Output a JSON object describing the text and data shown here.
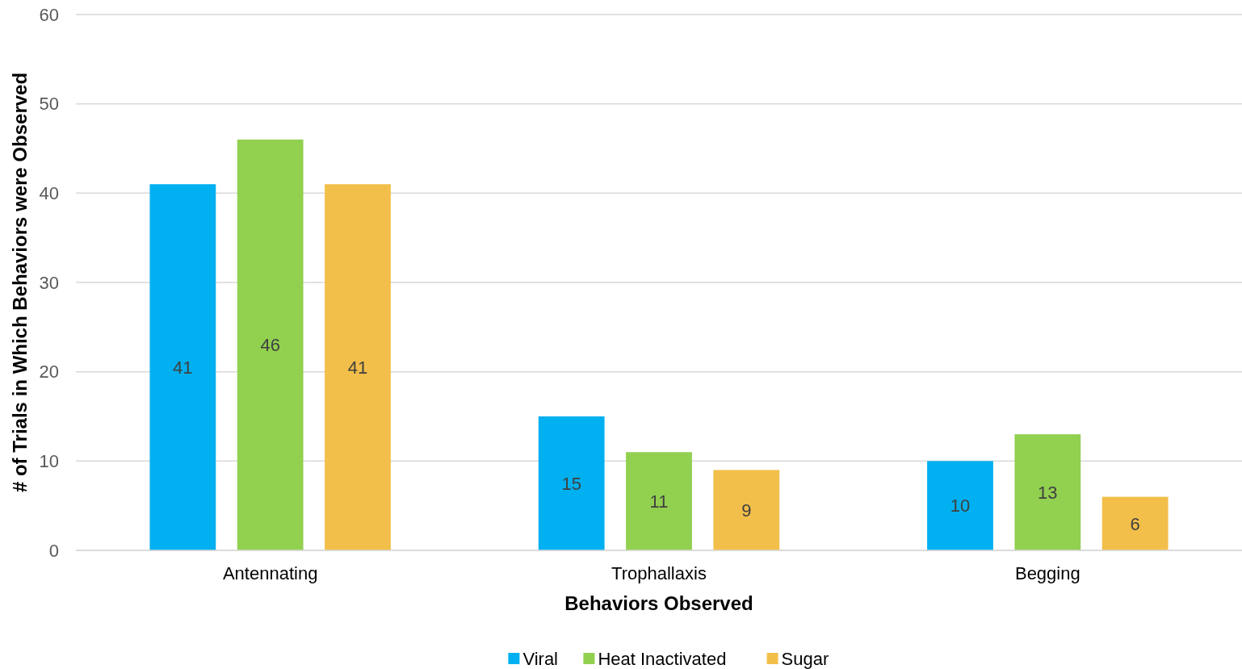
{
  "chart_data": {
    "type": "bar",
    "xlabel": "Behaviors Observed",
    "ylabel": "# of Trials in Which Behaviors were Observed",
    "categories": [
      "Antennating",
      "Trophallaxis",
      "Begging"
    ],
    "series": [
      {
        "name": "Viral",
        "color": "#00b0f0",
        "values": [
          41,
          15,
          10
        ]
      },
      {
        "name": "Heat Inactivated",
        "color": "#92d050",
        "values": [
          46,
          11,
          13
        ]
      },
      {
        "name": "Sugar",
        "color": "#f2bf4a",
        "values": [
          41,
          9,
          6
        ]
      }
    ],
    "ylim": [
      0,
      60
    ],
    "yticks": [
      0,
      10,
      20,
      30,
      40,
      50,
      60
    ],
    "grid": "y",
    "legend": "bottom",
    "data_labels": true
  }
}
